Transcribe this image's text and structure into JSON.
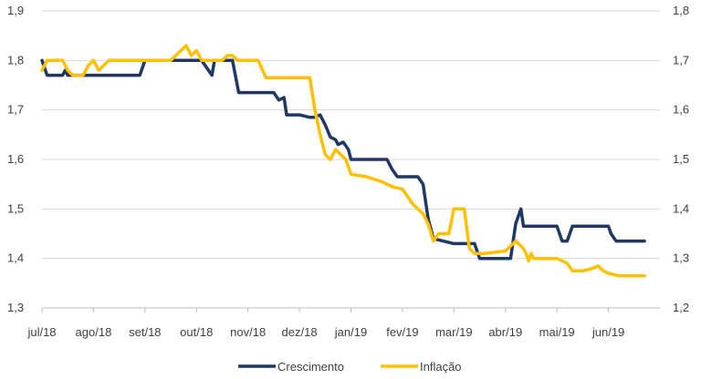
{
  "chart_data": {
    "type": "line",
    "title": "",
    "xlabel": "",
    "ylabel": "",
    "categories": [
      "jul/18",
      "ago/18",
      "set/18",
      "out/18",
      "nov/18",
      "dez/18",
      "jan/19",
      "fev/19",
      "mar/19",
      "abr/19",
      "mai/19",
      "jun/19"
    ],
    "left_axis": {
      "range": [
        1.3,
        1.9
      ],
      "ticks": [
        "1,3",
        "1,4",
        "1,5",
        "1,6",
        "1,7",
        "1,8",
        "1,9"
      ]
    },
    "right_axis": {
      "range": [
        1.2,
        1.8
      ],
      "ticks": [
        "1,2",
        "1,3",
        "1,4",
        "1,5",
        "1,6",
        "1,7",
        "1,8"
      ]
    },
    "grid": "horizontal",
    "legend_position": "bottom",
    "series": [
      {
        "name": "Crescimento",
        "axis": "left",
        "color": "#1f3864",
        "points": [
          [
            0.0,
            1.8
          ],
          [
            0.1,
            1.77
          ],
          [
            0.4,
            1.77
          ],
          [
            0.45,
            1.78
          ],
          [
            0.5,
            1.77
          ],
          [
            0.9,
            1.77
          ],
          [
            1.0,
            1.77
          ],
          [
            1.5,
            1.77
          ],
          [
            1.9,
            1.77
          ],
          [
            2.0,
            1.8
          ],
          [
            2.4,
            1.8
          ],
          [
            2.8,
            1.8
          ],
          [
            3.1,
            1.8
          ],
          [
            3.3,
            1.77
          ],
          [
            3.35,
            1.8
          ],
          [
            3.7,
            1.8
          ],
          [
            3.82,
            1.735
          ],
          [
            4.5,
            1.735
          ],
          [
            4.6,
            1.72
          ],
          [
            4.7,
            1.725
          ],
          [
            4.75,
            1.69
          ],
          [
            4.85,
            1.69
          ],
          [
            5.0,
            1.69
          ],
          [
            5.2,
            1.685
          ],
          [
            5.3,
            1.685
          ],
          [
            5.4,
            1.69
          ],
          [
            5.5,
            1.67
          ],
          [
            5.6,
            1.645
          ],
          [
            5.7,
            1.64
          ],
          [
            5.75,
            1.63
          ],
          [
            5.85,
            1.635
          ],
          [
            5.95,
            1.62
          ],
          [
            6.0,
            1.6
          ],
          [
            6.2,
            1.6
          ],
          [
            6.7,
            1.6
          ],
          [
            6.8,
            1.58
          ],
          [
            6.9,
            1.565
          ],
          [
            7.3,
            1.565
          ],
          [
            7.4,
            1.55
          ],
          [
            7.5,
            1.48
          ],
          [
            7.6,
            1.44
          ],
          [
            8.0,
            1.43
          ],
          [
            8.4,
            1.43
          ],
          [
            8.5,
            1.4
          ],
          [
            9.0,
            1.4
          ],
          [
            9.1,
            1.4
          ],
          [
            9.2,
            1.47
          ],
          [
            9.3,
            1.5
          ],
          [
            9.35,
            1.465
          ],
          [
            10.0,
            1.465
          ],
          [
            10.1,
            1.435
          ],
          [
            10.2,
            1.435
          ],
          [
            10.3,
            1.465
          ],
          [
            10.5,
            1.465
          ],
          [
            11.0,
            1.465
          ],
          [
            11.05,
            1.45
          ],
          [
            11.15,
            1.435
          ],
          [
            11.5,
            1.435
          ],
          [
            11.7,
            1.435
          ]
        ]
      },
      {
        "name": "Inflação",
        "axis": "right",
        "color": "#ffc000",
        "points": [
          [
            0.0,
            1.68
          ],
          [
            0.1,
            1.7
          ],
          [
            0.4,
            1.7
          ],
          [
            0.5,
            1.68
          ],
          [
            0.6,
            1.67
          ],
          [
            0.8,
            1.67
          ],
          [
            0.9,
            1.69
          ],
          [
            1.0,
            1.7
          ],
          [
            1.1,
            1.68
          ],
          [
            1.3,
            1.7
          ],
          [
            1.5,
            1.7
          ],
          [
            2.0,
            1.7
          ],
          [
            2.5,
            1.7
          ],
          [
            2.7,
            1.72
          ],
          [
            2.8,
            1.73
          ],
          [
            2.9,
            1.71
          ],
          [
            3.0,
            1.72
          ],
          [
            3.1,
            1.7
          ],
          [
            3.5,
            1.7
          ],
          [
            3.6,
            1.71
          ],
          [
            3.7,
            1.71
          ],
          [
            3.8,
            1.7
          ],
          [
            4.0,
            1.7
          ],
          [
            4.2,
            1.7
          ],
          [
            4.35,
            1.665
          ],
          [
            4.5,
            1.665
          ],
          [
            4.7,
            1.665
          ],
          [
            5.0,
            1.665
          ],
          [
            5.1,
            1.665
          ],
          [
            5.2,
            1.665
          ],
          [
            5.3,
            1.6
          ],
          [
            5.4,
            1.55
          ],
          [
            5.5,
            1.51
          ],
          [
            5.6,
            1.5
          ],
          [
            5.7,
            1.52
          ],
          [
            5.8,
            1.51
          ],
          [
            5.9,
            1.5
          ],
          [
            6.0,
            1.47
          ],
          [
            6.3,
            1.465
          ],
          [
            6.6,
            1.455
          ],
          [
            6.8,
            1.445
          ],
          [
            7.0,
            1.44
          ],
          [
            7.2,
            1.41
          ],
          [
            7.4,
            1.39
          ],
          [
            7.5,
            1.37
          ],
          [
            7.6,
            1.335
          ],
          [
            7.7,
            1.35
          ],
          [
            7.9,
            1.35
          ],
          [
            8.0,
            1.4
          ],
          [
            8.2,
            1.4
          ],
          [
            8.3,
            1.32
          ],
          [
            8.4,
            1.31
          ],
          [
            8.6,
            1.31
          ],
          [
            9.0,
            1.315
          ],
          [
            9.2,
            1.335
          ],
          [
            9.35,
            1.32
          ],
          [
            9.4,
            1.31
          ],
          [
            9.45,
            1.295
          ],
          [
            9.5,
            1.31
          ],
          [
            9.55,
            1.3
          ],
          [
            10.0,
            1.3
          ],
          [
            10.2,
            1.29
          ],
          [
            10.3,
            1.275
          ],
          [
            10.5,
            1.275
          ],
          [
            10.7,
            1.28
          ],
          [
            10.8,
            1.285
          ],
          [
            10.9,
            1.275
          ],
          [
            11.0,
            1.27
          ],
          [
            11.2,
            1.265
          ],
          [
            11.5,
            1.265
          ],
          [
            11.7,
            1.265
          ]
        ]
      }
    ]
  }
}
